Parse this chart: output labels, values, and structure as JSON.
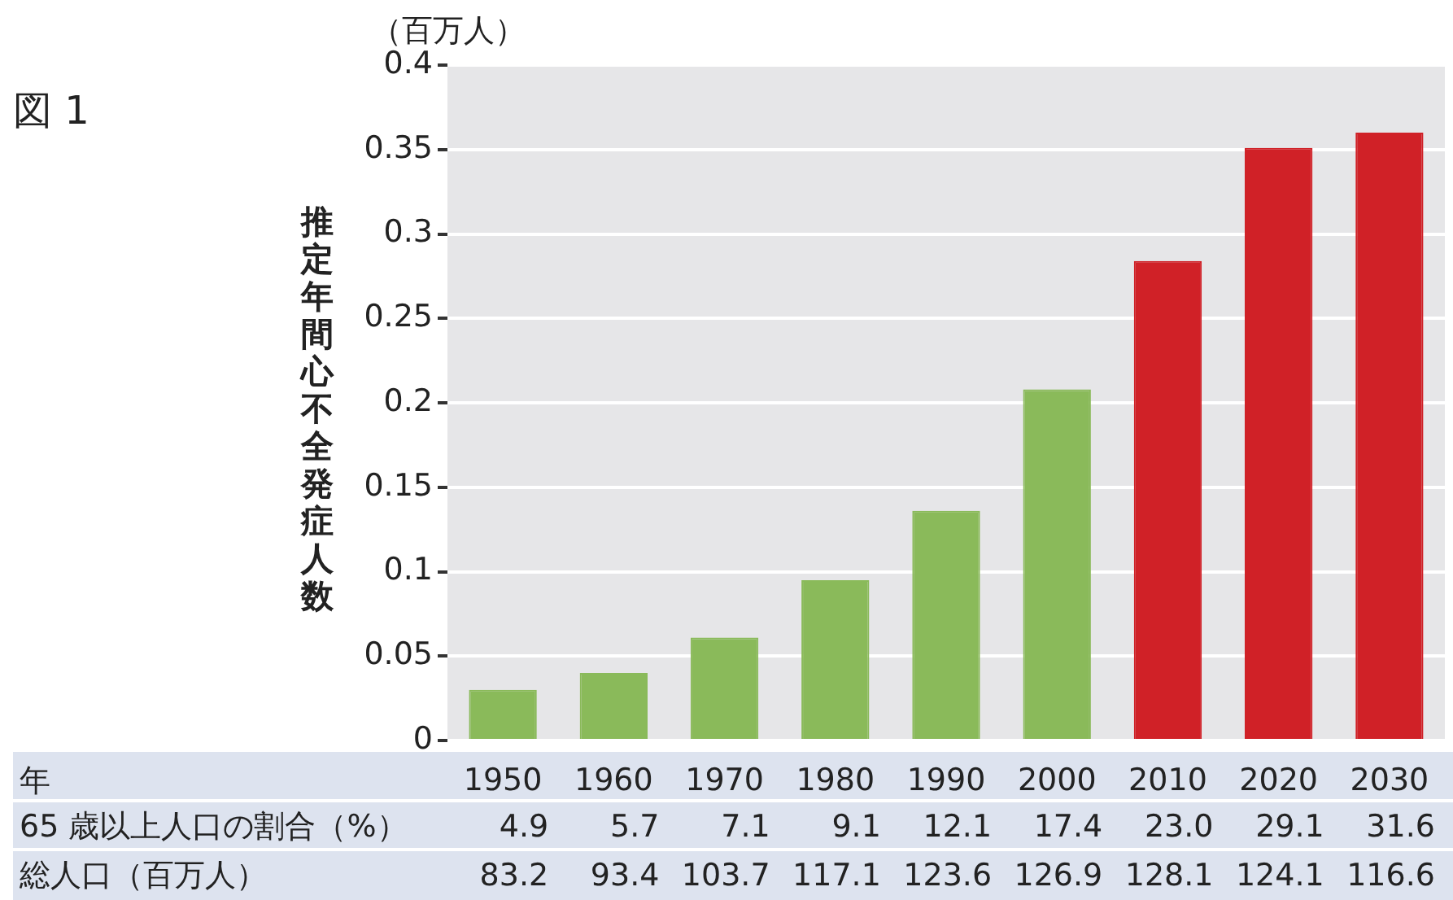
{
  "chart_data": {
    "type": "bar",
    "title": "図 1",
    "subtitle": "（百万人）",
    "ylabel": "推定年間心不全発症人数",
    "categories": [
      "1950",
      "1960",
      "1970",
      "1980",
      "1990",
      "2000",
      "2010",
      "2020",
      "2030"
    ],
    "values": [
      0.03,
      0.04,
      0.061,
      0.095,
      0.136,
      0.208,
      0.284,
      0.351,
      0.36
    ],
    "colors": [
      "#8aba5a",
      "#8aba5a",
      "#8aba5a",
      "#8aba5a",
      "#8aba5a",
      "#8aba5a",
      "#d02127",
      "#d02127",
      "#d02127"
    ],
    "ylim": [
      0,
      0.4
    ],
    "yticks": [
      0,
      0.05,
      0.1,
      0.15,
      0.2,
      0.25,
      0.3,
      0.35,
      0.4
    ],
    "grid": "y",
    "annotations": [
      "年",
      "65 歳以上人口の割合（%）",
      "4.9",
      "5.7",
      "7.1",
      "9.1",
      "12.1",
      "17.4",
      "23.0",
      "29.1",
      "31.6",
      "総人口（百万人）",
      "83.2",
      "93.4",
      "103.7",
      "117.1",
      "123.6",
      "126.9",
      "128.1",
      "124.1",
      "116.6"
    ]
  }
}
